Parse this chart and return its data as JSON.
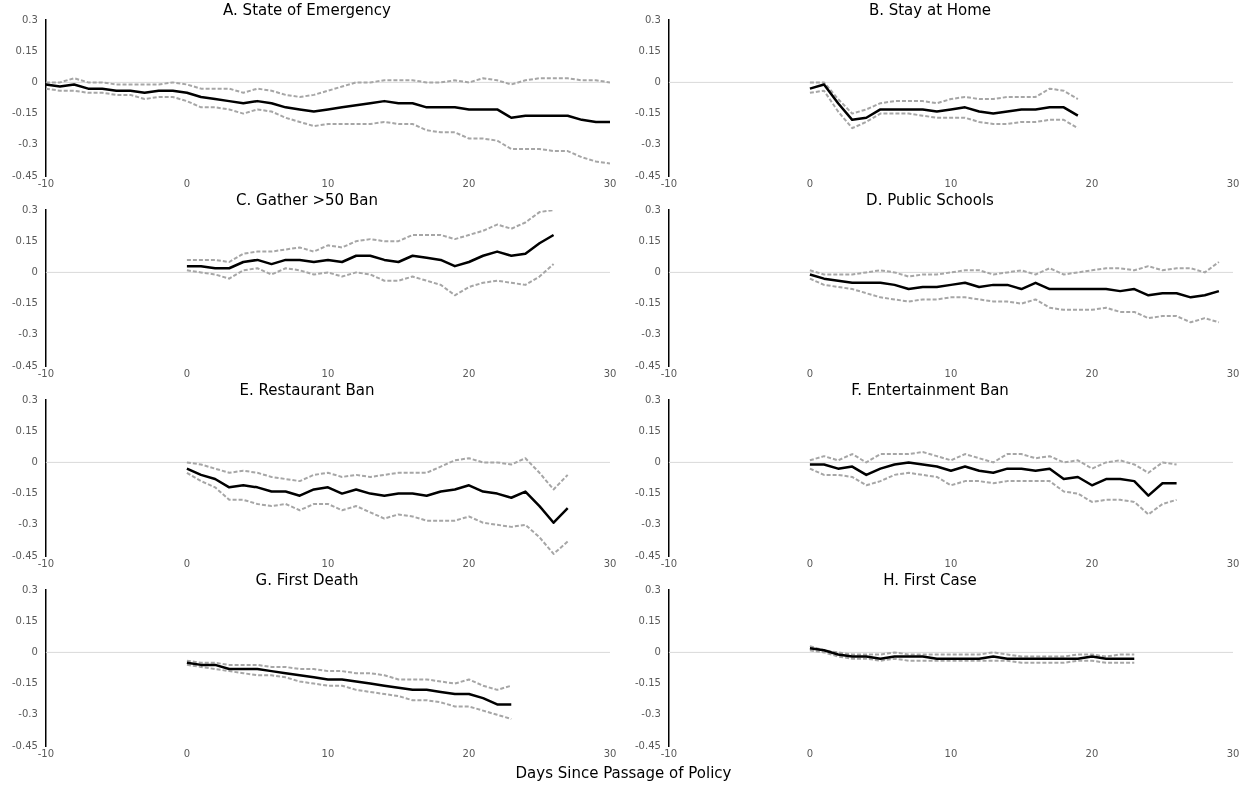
{
  "chart_data": [
    {
      "type": "line",
      "title": "A. State of Emergency",
      "ref_lines": [
        {
          "axis": "y",
          "value": 0,
          "color": "#d9d9d9"
        }
      ],
      "marker": "none",
      "grid": false,
      "xlim": [
        -10,
        30
      ],
      "xticks": [
        -10,
        0,
        10,
        20,
        30
      ],
      "ylim": [
        -0.45,
        0.3
      ],
      "yticks": [
        -0.45,
        -0.3,
        -0.15,
        0,
        0.15,
        0.3
      ],
      "x": [
        -10,
        -9,
        -8,
        -7,
        -6,
        -5,
        -4,
        -3,
        -2,
        -1,
        0,
        1,
        2,
        3,
        4,
        5,
        6,
        7,
        8,
        9,
        10,
        11,
        12,
        13,
        14,
        15,
        16,
        17,
        18,
        19,
        20,
        21,
        22,
        23,
        24,
        25,
        26,
        27,
        28,
        29,
        30
      ],
      "series": [
        {
          "color": "#000000",
          "line_style": "solid",
          "values": [
            -0.01,
            -0.02,
            -0.01,
            -0.03,
            -0.03,
            -0.04,
            -0.04,
            -0.05,
            -0.04,
            -0.04,
            -0.05,
            -0.07,
            -0.08,
            -0.09,
            -0.1,
            -0.09,
            -0.1,
            -0.12,
            -0.13,
            -0.14,
            -0.13,
            -0.12,
            -0.11,
            -0.1,
            -0.09,
            -0.1,
            -0.1,
            -0.12,
            -0.12,
            -0.12,
            -0.13,
            -0.13,
            -0.13,
            -0.17,
            -0.16,
            -0.16,
            -0.16,
            -0.16,
            -0.18,
            -0.19,
            -0.19
          ]
        },
        {
          "color": "#a6a6a6",
          "line_style": "dashed",
          "values": [
            0,
            0,
            0.02,
            0,
            0,
            -0.01,
            -0.01,
            -0.01,
            -0.01,
            0,
            -0.01,
            -0.03,
            -0.03,
            -0.03,
            -0.05,
            -0.03,
            -0.04,
            -0.06,
            -0.07,
            -0.06,
            -0.04,
            -0.02,
            0,
            0,
            0.01,
            0.01,
            0.01,
            0,
            0,
            0.01,
            0,
            0.02,
            0.01,
            -0.01,
            0.01,
            0.02,
            0.02,
            0.02,
            0.01,
            0.01,
            0
          ]
        },
        {
          "color": "#a6a6a6",
          "line_style": "dashed",
          "values": [
            -0.03,
            -0.04,
            -0.04,
            -0.05,
            -0.05,
            -0.06,
            -0.06,
            -0.08,
            -0.07,
            -0.07,
            -0.09,
            -0.12,
            -0.12,
            -0.13,
            -0.15,
            -0.13,
            -0.14,
            -0.17,
            -0.19,
            -0.21,
            -0.2,
            -0.2,
            -0.2,
            -0.2,
            -0.19,
            -0.2,
            -0.2,
            -0.23,
            -0.24,
            -0.24,
            -0.27,
            -0.27,
            -0.28,
            -0.32,
            -0.32,
            -0.32,
            -0.33,
            -0.33,
            -0.36,
            -0.38,
            -0.39
          ]
        }
      ]
    },
    {
      "type": "line",
      "title": "B. Stay at Home",
      "ref_lines": [
        {
          "axis": "y",
          "value": 0,
          "color": "#d9d9d9"
        }
      ],
      "marker": "none",
      "grid": false,
      "xlim": [
        -10,
        30
      ],
      "xticks": [
        -10,
        0,
        10,
        20,
        30
      ],
      "ylim": [
        -0.45,
        0.3
      ],
      "yticks": [
        -0.45,
        -0.3,
        -0.15,
        0,
        0.15,
        0.3
      ],
      "x": [
        0,
        1,
        2,
        3,
        4,
        5,
        6,
        7,
        8,
        9,
        10,
        11,
        12,
        13,
        14,
        15,
        16,
        17,
        18,
        19
      ],
      "series": [
        {
          "color": "#000000",
          "line_style": "solid",
          "values": [
            -0.03,
            -0.01,
            -0.1,
            -0.18,
            -0.17,
            -0.13,
            -0.13,
            -0.13,
            -0.13,
            -0.14,
            -0.13,
            -0.12,
            -0.14,
            -0.15,
            -0.14,
            -0.13,
            -0.13,
            -0.12,
            -0.12,
            -0.16
          ]
        },
        {
          "color": "#a6a6a6",
          "line_style": "dashed",
          "values": [
            0,
            0,
            -0.08,
            -0.15,
            -0.13,
            -0.1,
            -0.09,
            -0.09,
            -0.09,
            -0.1,
            -0.08,
            -0.07,
            -0.08,
            -0.08,
            -0.07,
            -0.07,
            -0.07,
            -0.03,
            -0.04,
            -0.08
          ]
        },
        {
          "color": "#a6a6a6",
          "line_style": "dashed",
          "values": [
            -0.05,
            -0.04,
            -0.14,
            -0.22,
            -0.19,
            -0.15,
            -0.15,
            -0.15,
            -0.16,
            -0.17,
            -0.17,
            -0.17,
            -0.19,
            -0.2,
            -0.2,
            -0.19,
            -0.19,
            -0.18,
            -0.18,
            -0.22
          ]
        }
      ]
    },
    {
      "type": "line",
      "title": "C. Gather >50 Ban",
      "ref_lines": [
        {
          "axis": "y",
          "value": 0,
          "color": "#d9d9d9"
        }
      ],
      "marker": "none",
      "grid": false,
      "xlim": [
        -10,
        30
      ],
      "xticks": [
        -10,
        0,
        10,
        20,
        30
      ],
      "ylim": [
        -0.45,
        0.3
      ],
      "yticks": [
        -0.45,
        -0.3,
        -0.15,
        0,
        0.15,
        0.3
      ],
      "x": [
        0,
        1,
        2,
        3,
        4,
        5,
        6,
        7,
        8,
        9,
        10,
        11,
        12,
        13,
        14,
        15,
        16,
        17,
        18,
        19,
        20,
        21,
        22,
        23,
        24,
        25,
        26
      ],
      "series": [
        {
          "color": "#000000",
          "line_style": "solid",
          "values": [
            0.03,
            0.03,
            0.02,
            0.02,
            0.05,
            0.06,
            0.04,
            0.06,
            0.06,
            0.05,
            0.06,
            0.05,
            0.08,
            0.08,
            0.06,
            0.05,
            0.08,
            0.07,
            0.06,
            0.03,
            0.05,
            0.08,
            0.1,
            0.08,
            0.09,
            0.14,
            0.18
          ]
        },
        {
          "color": "#a6a6a6",
          "line_style": "dashed",
          "values": [
            0.06,
            0.06,
            0.06,
            0.05,
            0.09,
            0.1,
            0.1,
            0.11,
            0.12,
            0.1,
            0.13,
            0.12,
            0.15,
            0.16,
            0.15,
            0.15,
            0.18,
            0.18,
            0.18,
            0.16,
            0.18,
            0.2,
            0.23,
            0.21,
            0.24,
            0.29,
            0.3
          ]
        },
        {
          "color": "#a6a6a6",
          "line_style": "dashed",
          "values": [
            0.01,
            0,
            -0.01,
            -0.03,
            0.01,
            0.02,
            -0.01,
            0.02,
            0.01,
            -0.01,
            0,
            -0.02,
            0,
            -0.01,
            -0.04,
            -0.04,
            -0.02,
            -0.04,
            -0.06,
            -0.11,
            -0.07,
            -0.05,
            -0.04,
            -0.05,
            -0.06,
            -0.02,
            0.04
          ]
        }
      ]
    },
    {
      "type": "line",
      "title": "D. Public Schools",
      "ref_lines": [
        {
          "axis": "y",
          "value": 0,
          "color": "#d9d9d9"
        }
      ],
      "marker": "none",
      "grid": false,
      "xlim": [
        -10,
        30
      ],
      "xticks": [
        -10,
        0,
        10,
        20,
        30
      ],
      "ylim": [
        -0.45,
        0.3
      ],
      "yticks": [
        -0.45,
        -0.3,
        -0.15,
        0,
        0.15,
        0.3
      ],
      "x": [
        0,
        1,
        2,
        3,
        4,
        5,
        6,
        7,
        8,
        9,
        10,
        11,
        12,
        13,
        14,
        15,
        16,
        17,
        18,
        19,
        20,
        21,
        22,
        23,
        24,
        25,
        26,
        27,
        28,
        29
      ],
      "series": [
        {
          "color": "#000000",
          "line_style": "solid",
          "values": [
            -0.01,
            -0.03,
            -0.04,
            -0.05,
            -0.05,
            -0.05,
            -0.06,
            -0.08,
            -0.07,
            -0.07,
            -0.06,
            -0.05,
            -0.07,
            -0.06,
            -0.06,
            -0.08,
            -0.05,
            -0.08,
            -0.08,
            -0.08,
            -0.08,
            -0.08,
            -0.09,
            -0.08,
            -0.11,
            -0.1,
            -0.1,
            -0.12,
            -0.11,
            -0.09
          ]
        },
        {
          "color": "#a6a6a6",
          "line_style": "dashed",
          "values": [
            0.01,
            -0.01,
            -0.01,
            -0.01,
            0,
            0.01,
            0,
            -0.02,
            -0.01,
            -0.01,
            0,
            0.01,
            0.01,
            -0.01,
            0,
            0.01,
            -0.01,
            0.02,
            -0.01,
            0,
            0.01,
            0.02,
            0.02,
            0.01,
            0.03,
            0.01,
            0.02,
            0.02,
            0,
            0.05
          ]
        },
        {
          "color": "#a6a6a6",
          "line_style": "dashed",
          "values": [
            -0.03,
            -0.06,
            -0.07,
            -0.08,
            -0.1,
            -0.12,
            -0.13,
            -0.14,
            -0.13,
            -0.13,
            -0.12,
            -0.12,
            -0.13,
            -0.14,
            -0.14,
            -0.15,
            -0.13,
            -0.17,
            -0.18,
            -0.18,
            -0.18,
            -0.17,
            -0.19,
            -0.19,
            -0.22,
            -0.21,
            -0.21,
            -0.24,
            -0.22,
            -0.24
          ]
        }
      ]
    },
    {
      "type": "line",
      "title": "E. Restaurant Ban",
      "ref_lines": [
        {
          "axis": "y",
          "value": 0,
          "color": "#d9d9d9"
        }
      ],
      "marker": "none",
      "grid": false,
      "xlim": [
        -10,
        30
      ],
      "xticks": [
        -10,
        0,
        10,
        20,
        30
      ],
      "ylim": [
        -0.45,
        0.3
      ],
      "yticks": [
        -0.45,
        -0.3,
        -0.15,
        0,
        0.15,
        0.3
      ],
      "x": [
        0,
        1,
        2,
        3,
        4,
        5,
        6,
        7,
        8,
        9,
        10,
        11,
        12,
        13,
        14,
        15,
        16,
        17,
        18,
        19,
        20,
        21,
        22,
        23,
        24,
        25,
        26,
        27
      ],
      "series": [
        {
          "color": "#000000",
          "line_style": "solid",
          "values": [
            -0.03,
            -0.06,
            -0.08,
            -0.12,
            -0.11,
            -0.12,
            -0.14,
            -0.14,
            -0.16,
            -0.13,
            -0.12,
            -0.15,
            -0.13,
            -0.15,
            -0.16,
            -0.15,
            -0.15,
            -0.16,
            -0.14,
            -0.13,
            -0.11,
            -0.14,
            -0.15,
            -0.17,
            -0.14,
            -0.21,
            -0.29,
            -0.22
          ]
        },
        {
          "color": "#a6a6a6",
          "line_style": "dashed",
          "values": [
            0,
            -0.01,
            -0.03,
            -0.05,
            -0.04,
            -0.05,
            -0.07,
            -0.08,
            -0.09,
            -0.06,
            -0.05,
            -0.07,
            -0.06,
            -0.07,
            -0.06,
            -0.05,
            -0.05,
            -0.05,
            -0.02,
            0.01,
            0.02,
            0,
            0,
            -0.01,
            0.02,
            -0.05,
            -0.13,
            -0.06
          ]
        },
        {
          "color": "#a6a6a6",
          "line_style": "dashed",
          "values": [
            -0.05,
            -0.09,
            -0.12,
            -0.18,
            -0.18,
            -0.2,
            -0.21,
            -0.2,
            -0.23,
            -0.2,
            -0.2,
            -0.23,
            -0.21,
            -0.24,
            -0.27,
            -0.25,
            -0.26,
            -0.28,
            -0.28,
            -0.28,
            -0.26,
            -0.29,
            -0.3,
            -0.31,
            -0.3,
            -0.36,
            -0.44,
            -0.38
          ]
        }
      ]
    },
    {
      "type": "line",
      "title": "F. Entertainment Ban",
      "ref_lines": [
        {
          "axis": "y",
          "value": 0,
          "color": "#d9d9d9"
        }
      ],
      "marker": "none",
      "grid": false,
      "xlim": [
        -10,
        30
      ],
      "xticks": [
        -10,
        0,
        10,
        20,
        30
      ],
      "ylim": [
        -0.45,
        0.3
      ],
      "yticks": [
        -0.45,
        -0.3,
        -0.15,
        0,
        0.15,
        0.3
      ],
      "x": [
        0,
        1,
        2,
        3,
        4,
        5,
        6,
        7,
        8,
        9,
        10,
        11,
        12,
        13,
        14,
        15,
        16,
        17,
        18,
        19,
        20,
        21,
        22,
        23,
        24,
        25,
        26
      ],
      "series": [
        {
          "color": "#000000",
          "line_style": "solid",
          "values": [
            -0.01,
            -0.01,
            -0.03,
            -0.02,
            -0.06,
            -0.03,
            -0.01,
            0,
            -0.01,
            -0.02,
            -0.04,
            -0.02,
            -0.04,
            -0.05,
            -0.03,
            -0.03,
            -0.04,
            -0.03,
            -0.08,
            -0.07,
            -0.11,
            -0.08,
            -0.08,
            -0.09,
            -0.16,
            -0.1,
            -0.1
          ]
        },
        {
          "color": "#a6a6a6",
          "line_style": "dashed",
          "values": [
            0.01,
            0.03,
            0.01,
            0.04,
            0,
            0.04,
            0.04,
            0.04,
            0.05,
            0.03,
            0.01,
            0.04,
            0.02,
            0,
            0.04,
            0.04,
            0.02,
            0.03,
            0,
            0.01,
            -0.03,
            0,
            0.01,
            -0.01,
            -0.05,
            0,
            -0.01
          ]
        },
        {
          "color": "#a6a6a6",
          "line_style": "dashed",
          "values": [
            -0.03,
            -0.06,
            -0.06,
            -0.07,
            -0.11,
            -0.09,
            -0.06,
            -0.05,
            -0.06,
            -0.07,
            -0.11,
            -0.09,
            -0.09,
            -0.1,
            -0.09,
            -0.09,
            -0.09,
            -0.09,
            -0.14,
            -0.15,
            -0.19,
            -0.18,
            -0.18,
            -0.19,
            -0.25,
            -0.2,
            -0.18
          ]
        }
      ]
    },
    {
      "type": "line",
      "title": "G. First Death",
      "xlabel": "Days Since Passage of Policy",
      "ref_lines": [
        {
          "axis": "y",
          "value": 0,
          "color": "#d9d9d9"
        }
      ],
      "marker": "none",
      "grid": false,
      "xlim": [
        -10,
        30
      ],
      "xticks": [
        -10,
        0,
        10,
        20,
        30
      ],
      "ylim": [
        -0.45,
        0.3
      ],
      "yticks": [
        -0.45,
        -0.3,
        -0.15,
        0,
        0.15,
        0.3
      ],
      "x": [
        0,
        1,
        2,
        3,
        4,
        5,
        6,
        7,
        8,
        9,
        10,
        11,
        12,
        13,
        14,
        15,
        16,
        17,
        18,
        19,
        20,
        21,
        22,
        23
      ],
      "series": [
        {
          "color": "#000000",
          "line_style": "solid",
          "values": [
            -0.05,
            -0.06,
            -0.06,
            -0.08,
            -0.08,
            -0.08,
            -0.09,
            -0.1,
            -0.11,
            -0.12,
            -0.13,
            -0.13,
            -0.14,
            -0.15,
            -0.16,
            -0.17,
            -0.18,
            -0.18,
            -0.19,
            -0.2,
            -0.2,
            -0.22,
            -0.25,
            -0.25
          ]
        },
        {
          "color": "#a6a6a6",
          "line_style": "dashed",
          "values": [
            -0.04,
            -0.05,
            -0.05,
            -0.06,
            -0.06,
            -0.06,
            -0.07,
            -0.07,
            -0.08,
            -0.08,
            -0.09,
            -0.09,
            -0.1,
            -0.1,
            -0.11,
            -0.13,
            -0.13,
            -0.13,
            -0.14,
            -0.15,
            -0.13,
            -0.16,
            -0.18,
            -0.16
          ]
        },
        {
          "color": "#a6a6a6",
          "line_style": "dashed",
          "values": [
            -0.06,
            -0.07,
            -0.08,
            -0.09,
            -0.1,
            -0.11,
            -0.11,
            -0.12,
            -0.14,
            -0.15,
            -0.16,
            -0.16,
            -0.18,
            -0.19,
            -0.2,
            -0.21,
            -0.23,
            -0.23,
            -0.24,
            -0.26,
            -0.26,
            -0.28,
            -0.3,
            -0.32
          ]
        }
      ]
    },
    {
      "type": "line",
      "title": "H. First Case",
      "ref_lines": [
        {
          "axis": "y",
          "value": 0,
          "color": "#d9d9d9"
        }
      ],
      "marker": "none",
      "grid": false,
      "xlim": [
        -10,
        30
      ],
      "xticks": [
        -10,
        0,
        10,
        20,
        30
      ],
      "ylim": [
        -0.45,
        0.3
      ],
      "yticks": [
        -0.45,
        -0.3,
        -0.15,
        0,
        0.15,
        0.3
      ],
      "x": [
        0,
        1,
        2,
        3,
        4,
        5,
        6,
        7,
        8,
        9,
        10,
        11,
        12,
        13,
        14,
        15,
        16,
        17,
        18,
        19,
        20,
        21,
        22,
        23
      ],
      "series": [
        {
          "color": "#000000",
          "line_style": "solid",
          "values": [
            0.02,
            0.01,
            -0.01,
            -0.02,
            -0.02,
            -0.03,
            -0.02,
            -0.02,
            -0.02,
            -0.03,
            -0.03,
            -0.03,
            -0.03,
            -0.02,
            -0.03,
            -0.03,
            -0.03,
            -0.03,
            -0.03,
            -0.03,
            -0.02,
            -0.03,
            -0.03,
            -0.03
          ]
        },
        {
          "color": "#a6a6a6",
          "line_style": "dashed",
          "values": [
            0.03,
            0.01,
            0,
            -0.01,
            -0.01,
            -0.01,
            0,
            -0.01,
            -0.01,
            -0.01,
            -0.01,
            -0.01,
            -0.01,
            0,
            -0.01,
            -0.02,
            -0.02,
            -0.02,
            -0.02,
            -0.01,
            -0.01,
            -0.02,
            -0.01,
            -0.01
          ]
        },
        {
          "color": "#a6a6a6",
          "line_style": "dashed",
          "values": [
            0.01,
            0,
            -0.02,
            -0.03,
            -0.03,
            -0.04,
            -0.03,
            -0.04,
            -0.04,
            -0.04,
            -0.04,
            -0.04,
            -0.04,
            -0.04,
            -0.04,
            -0.05,
            -0.05,
            -0.05,
            -0.05,
            -0.04,
            -0.04,
            -0.05,
            -0.05,
            -0.05
          ]
        }
      ]
    }
  ]
}
